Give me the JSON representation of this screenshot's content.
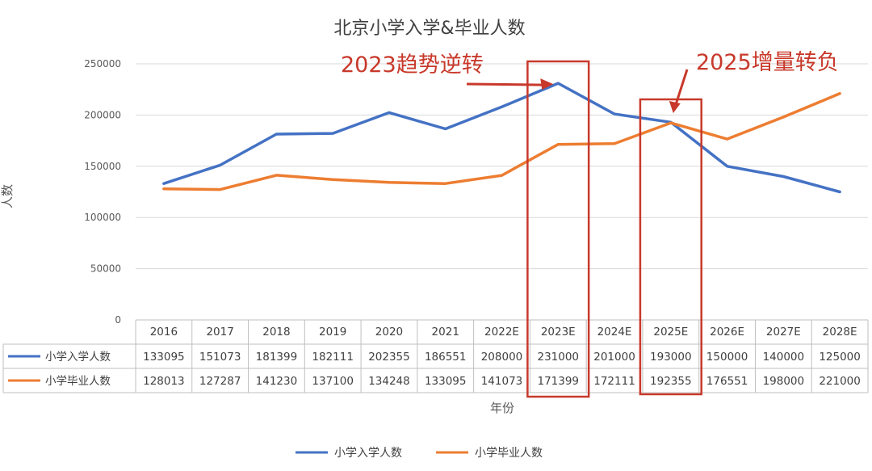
{
  "chart_data": {
    "type": "line",
    "title": "北京小学入学&毕业人数",
    "xlabel": "年份",
    "ylabel": "人数",
    "ylim": [
      0,
      250000
    ],
    "yticks": [
      0,
      50000,
      100000,
      150000,
      200000,
      250000
    ],
    "grid": true,
    "legend": "bottom",
    "categories": [
      "2016",
      "2017",
      "2018",
      "2019",
      "2020",
      "2021",
      "2022E",
      "2023E",
      "2024E",
      "2025E",
      "2026E",
      "2027E",
      "2028E"
    ],
    "series": [
      {
        "name": "小学入学人数",
        "color": "#4472c4",
        "values": [
          133095,
          151073,
          181399,
          182111,
          202355,
          186551,
          208000,
          231000,
          201000,
          193000,
          150000,
          140000,
          125000
        ]
      },
      {
        "name": "小学毕业人数",
        "color": "#ed7d31",
        "values": [
          128013,
          127287,
          141230,
          137100,
          134248,
          133095,
          141073,
          171399,
          172111,
          192355,
          176551,
          198000,
          221000
        ]
      }
    ],
    "annotations": [
      {
        "text": "2023趋势逆转",
        "color": "#c8392b",
        "target": "2023E"
      },
      {
        "text": "2025增量转负",
        "color": "#c8392b",
        "target": "2025E"
      }
    ]
  }
}
